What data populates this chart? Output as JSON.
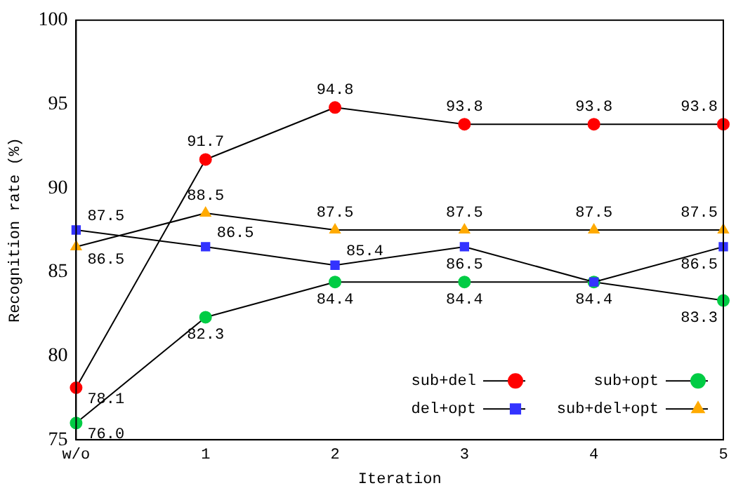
{
  "chart_data": {
    "type": "line",
    "xlabel": "Iteration",
    "ylabel": "Recognition rate (%)",
    "categories": [
      "w/o",
      "1",
      "2",
      "3",
      "4",
      "5"
    ],
    "ylim": [
      75,
      100
    ],
    "yticks": [
      75,
      80,
      85,
      90,
      95,
      100
    ],
    "grid": false,
    "legend": "bottom right",
    "line_style": "solid",
    "series": [
      {
        "name": "sub+del",
        "color": "#ff0000",
        "marker": "circle",
        "values": [
          78.1,
          91.7,
          94.8,
          93.8,
          93.8,
          93.8
        ],
        "value_labels": [
          "78.1",
          "91.7",
          "94.8",
          "93.8",
          "93.8",
          "93.8"
        ]
      },
      {
        "name": "del+opt",
        "color": "#3333ff",
        "marker": "square",
        "values": [
          87.5,
          86.5,
          85.4,
          86.5,
          84.4,
          86.5
        ],
        "value_labels": [
          "87.5",
          "86.5",
          "85.4",
          "86.5",
          null,
          "86.5"
        ]
      },
      {
        "name": "sub+opt",
        "color": "#00cc44",
        "marker": "circle",
        "values": [
          76.0,
          82.3,
          84.4,
          84.4,
          84.4,
          83.3
        ],
        "value_labels": [
          "76.0",
          "82.3",
          "84.4",
          "84.4",
          "84.4",
          "83.3"
        ]
      },
      {
        "name": "sub+del+opt",
        "color": "#ffaa00",
        "marker": "triangle",
        "values": [
          86.5,
          88.5,
          87.5,
          87.5,
          87.5,
          87.5
        ],
        "value_labels": [
          "86.5",
          "88.5",
          "87.5",
          "87.5",
          "87.5",
          "87.5"
        ]
      }
    ]
  }
}
